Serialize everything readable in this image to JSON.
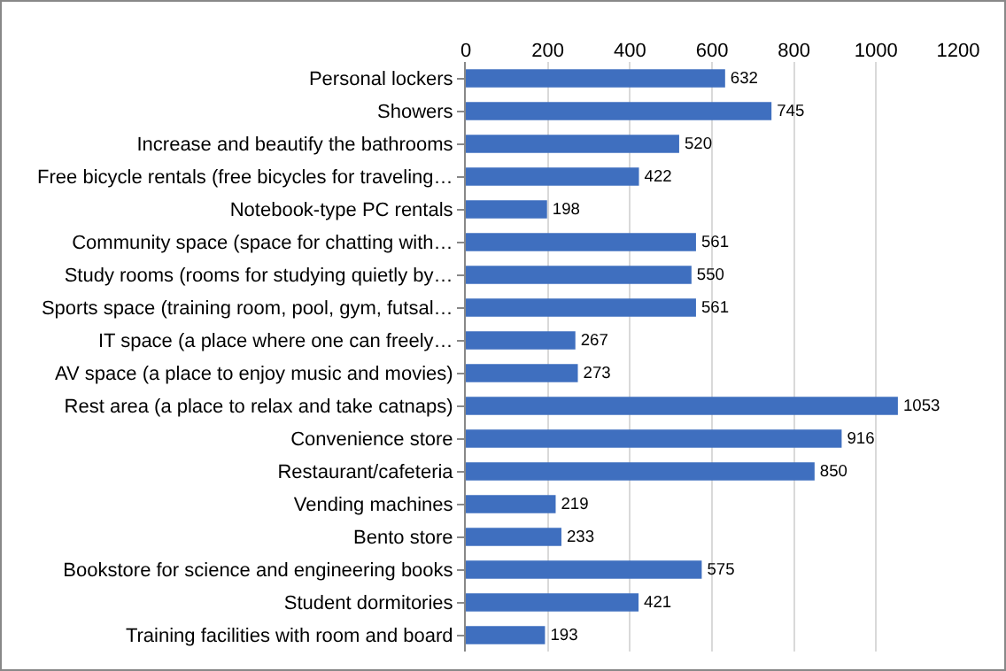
{
  "chart_data": {
    "type": "bar",
    "orientation": "horizontal",
    "categories": [
      "Personal lockers",
      "Showers",
      "Increase and beautify the bathrooms",
      "Free bicycle rentals (free bicycles for traveling…",
      "Notebook-type PC rentals",
      "Community space (space for chatting with…",
      "Study rooms (rooms for studying quietly by…",
      "Sports space (training room, pool, gym, futsal…",
      "IT space (a place where one can freely…",
      "AV space (a place to enjoy music and movies)",
      "Rest area (a place to relax and take catnaps)",
      "Convenience store",
      "Restaurant/cafeteria",
      "Vending machines",
      "Bento store",
      "Bookstore for science and engineering books",
      "Student dormitories",
      "Training facilities with room and board"
    ],
    "values": [
      632,
      745,
      520,
      422,
      198,
      561,
      550,
      561,
      267,
      273,
      1053,
      916,
      850,
      219,
      233,
      575,
      421,
      193
    ],
    "color": "#3f6fbf",
    "xlim": [
      0,
      1200
    ],
    "xticks": [
      0,
      200,
      400,
      600,
      800,
      1000,
      1200
    ],
    "grid": "x",
    "data_labels": true
  }
}
